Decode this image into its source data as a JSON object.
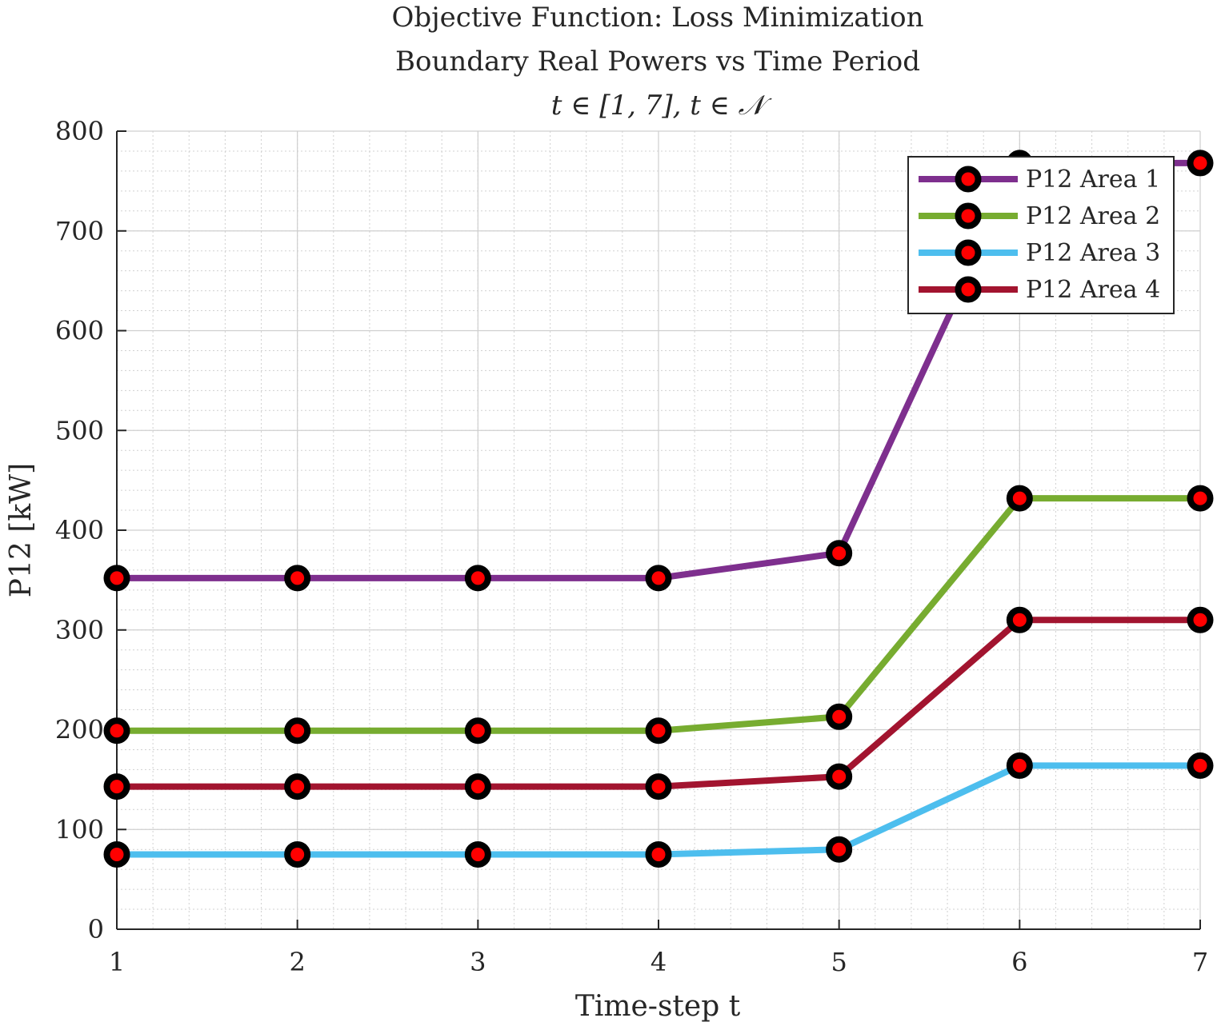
{
  "chart_data": {
    "type": "line",
    "title": [
      "Objective Function: Loss Minimization",
      "Boundary Real Powers vs Time Period",
      "t ∈ [1, 7], t ∈ 𝒩"
    ],
    "xlabel": "Time-step t",
    "ylabel": "P12 [kW]",
    "xlim": [
      1,
      7
    ],
    "ylim": [
      0,
      800
    ],
    "x_ticks": [
      1,
      2,
      3,
      4,
      5,
      6,
      7
    ],
    "x_tick_labels": [
      "1",
      "2",
      "3",
      "4",
      "5",
      "6",
      "7"
    ],
    "y_ticks": [
      0,
      100,
      200,
      300,
      400,
      500,
      600,
      700,
      800
    ],
    "y_tick_labels": [
      "0",
      "100",
      "200",
      "300",
      "400",
      "500",
      "600",
      "700",
      "800"
    ],
    "grid": true,
    "minor_grid": true,
    "legend_position": "top-right",
    "x": [
      1,
      2,
      3,
      4,
      5,
      6,
      7
    ],
    "series": [
      {
        "name": "P12 Area 1",
        "color": "#7e2f8e",
        "values": [
          352,
          352,
          352,
          352,
          377,
          768,
          768
        ]
      },
      {
        "name": "P12 Area 2",
        "color": "#77ac30",
        "values": [
          199,
          199,
          199,
          199,
          213,
          432,
          432
        ]
      },
      {
        "name": "P12 Area 3",
        "color": "#4dbeee",
        "values": [
          75,
          75,
          75,
          75,
          80,
          164,
          164
        ]
      },
      {
        "name": "P12 Area 4",
        "color": "#a2142f",
        "values": [
          143,
          143,
          143,
          143,
          153,
          310,
          310
        ]
      }
    ],
    "marker": {
      "edge_color": "#000000",
      "face_color": "#ff0000"
    }
  }
}
